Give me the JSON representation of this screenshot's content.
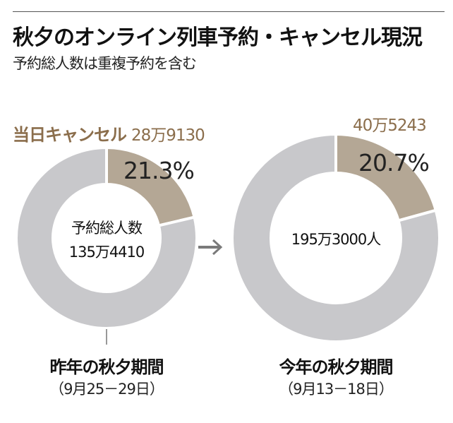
{
  "title": "秋夕のオンライン列車予約・キャンセル現況",
  "subtitle": "予約総人数は重複予約を含む",
  "colors": {
    "cancel": "#b4a795",
    "other": "#c8c8cb",
    "accent_text": "#8b6e4c"
  },
  "chart_data": [
    {
      "type": "pie",
      "name": "昨年の秋夕期間",
      "period": "（9月25－29日）",
      "cancel_label": "当日キャンセル",
      "cancel_count": "28万9130",
      "cancel_percent": 21.3,
      "cancel_percent_label": "21.3%",
      "total_label": "予約総人数",
      "total": "135万4410"
    },
    {
      "type": "pie",
      "name": "今年の秋夕期間",
      "period": "（9月13－18日）",
      "cancel_count": "40万5243",
      "cancel_percent": 20.7,
      "cancel_percent_label": "20.7%",
      "total": "195万3000人"
    }
  ]
}
